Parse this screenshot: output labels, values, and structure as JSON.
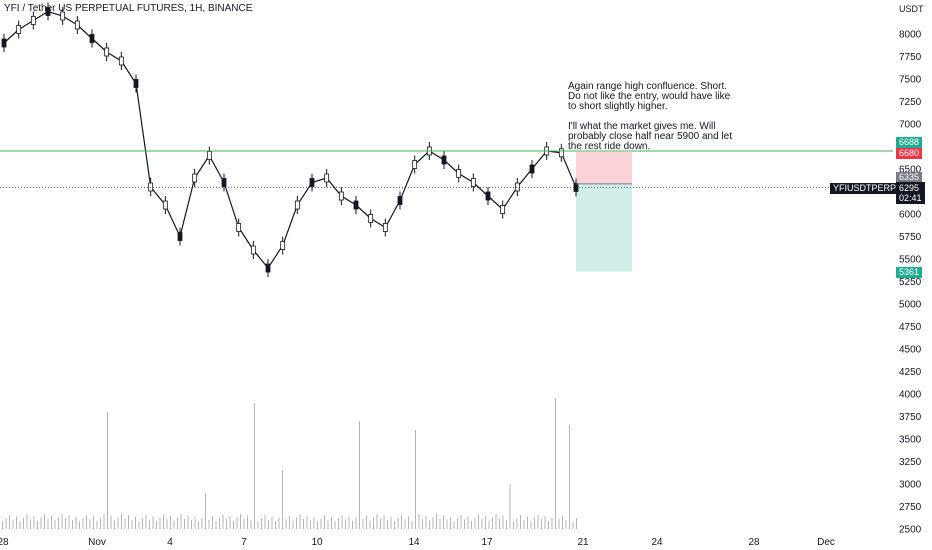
{
  "header": {
    "title": "YFI / Tether US PERPETUAL FUTURES, 1H, BINANCE"
  },
  "axis": {
    "currency": "USDT"
  },
  "annotation": {
    "lines": [
      "Again range high confluence. Short.",
      "Do not like the entry, would have like",
      "to short slightly higher.",
      "",
      "I'll what the market gives me. Will",
      "probably close half near 5900 and let",
      "the rest ride down."
    ]
  },
  "badges": {
    "green_top": "6688",
    "red": "6680",
    "gray": "6335",
    "symbol": "YFIUSDTPERP",
    "price": "6295",
    "countdown": "02:41",
    "target": "5361"
  },
  "colors": {
    "accent_green": "#4caf50",
    "red": "#f23645",
    "teal_zone": "#d1ede8",
    "red_zone": "#fbd3d9",
    "badge_green": "#22ab94",
    "badge_dark": "#131722",
    "badge_gray": "#787b86"
  },
  "chart_data": {
    "type": "candlestick",
    "y_ticks": [
      8000,
      7750,
      7500,
      7250,
      7000,
      6750,
      6500,
      6250,
      6000,
      5750,
      5500,
      5250,
      5000,
      4750,
      4500,
      4250,
      4000,
      3750,
      3500,
      3250,
      3000,
      2750,
      2500
    ],
    "x_ticks": [
      "28",
      "Nov",
      "4",
      "7",
      "10",
      "14",
      "17",
      "21",
      "24",
      "28",
      "Dec"
    ],
    "series": [
      {
        "values": [
          7900,
          8050,
          8150,
          8250,
          8200,
          8100,
          7950,
          7800,
          7700,
          7450,
          6300,
          6100,
          5750,
          6400,
          6650,
          6350,
          5850,
          5600,
          5400,
          5650,
          6100,
          6350,
          6400,
          6200,
          6100,
          5950,
          5850,
          6150,
          6550,
          6700,
          6600,
          6450,
          6350,
          6200,
          6050,
          6300,
          6500,
          6700,
          6680,
          6295
        ]
      }
    ],
    "levels": {
      "entry": 6335,
      "stop": 6688,
      "target": 5361,
      "range_high": 6700,
      "current": 6295
    },
    "volume_ylim": [
      2500,
      4000
    ]
  }
}
